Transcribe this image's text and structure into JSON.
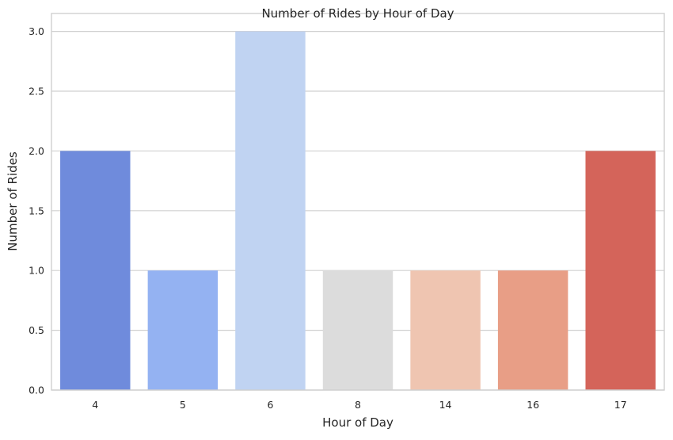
{
  "chart_data": {
    "type": "bar",
    "title": "Number of Rides by Hour of Day",
    "xlabel": "Hour of Day",
    "ylabel": "Number of Rides",
    "categories": [
      "4",
      "5",
      "6",
      "8",
      "14",
      "16",
      "17"
    ],
    "values": [
      2,
      1,
      3,
      1,
      1,
      1,
      2
    ],
    "colors": [
      "#6f8bdc",
      "#94b2f2",
      "#c0d3f2",
      "#dcdcdc",
      "#efc5b1",
      "#e89e86",
      "#d4645a"
    ],
    "ylim": [
      0,
      3.15
    ],
    "yticks": [
      "0.0",
      "0.5",
      "1.0",
      "1.5",
      "2.0",
      "2.5",
      "3.0"
    ],
    "grid": true,
    "legend": "none"
  }
}
